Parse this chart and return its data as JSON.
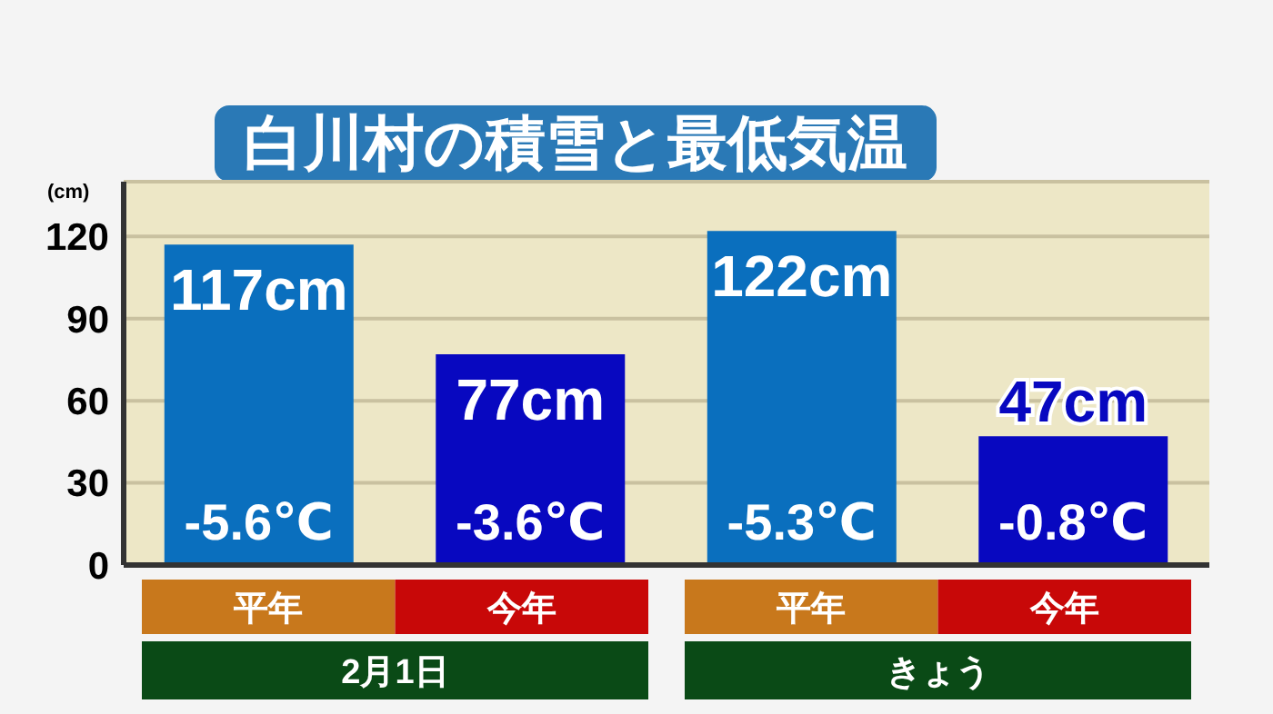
{
  "chart_data": {
    "type": "bar",
    "title": "白川村の積雪と最低気温",
    "ylabel": "(cm)",
    "categories": [
      "平年",
      "今年",
      "平年",
      "今年"
    ],
    "values": [
      117,
      77,
      122,
      47
    ],
    "colors": [
      "#0a6fbe",
      "#0808c0",
      "#0a6fbe",
      "#0808c0"
    ],
    "value_labels": [
      "117cm",
      "77cm",
      "122cm",
      "47cm"
    ],
    "annotations": [
      "-5.6℃",
      "-3.6℃",
      "-5.3℃",
      "-0.8℃",
      "2月1日",
      "きょう"
    ],
    "ylim": [
      0,
      140
    ],
    "yticks": [
      0,
      30,
      60,
      90,
      120
    ],
    "grid": "y"
  }
}
